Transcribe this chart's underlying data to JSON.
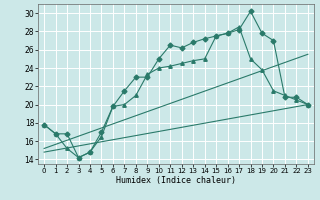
{
  "xlabel": "Humidex (Indice chaleur)",
  "xlim": [
    -0.5,
    23.5
  ],
  "ylim": [
    13.5,
    31.0
  ],
  "yticks": [
    14,
    16,
    18,
    20,
    22,
    24,
    26,
    28,
    30
  ],
  "xticks": [
    0,
    1,
    2,
    3,
    4,
    5,
    6,
    7,
    8,
    9,
    10,
    11,
    12,
    13,
    14,
    15,
    16,
    17,
    18,
    19,
    20,
    21,
    22,
    23
  ],
  "bg_color": "#cce8e8",
  "grid_color": "#b0d8d8",
  "line_color": "#2a7a6a",
  "series1_x": [
    0,
    1,
    2,
    3,
    4,
    5,
    6,
    7,
    8,
    9,
    10,
    11,
    12,
    13,
    14,
    15,
    16,
    17,
    18,
    19,
    20,
    21,
    22,
    23
  ],
  "series1_y": [
    17.8,
    16.8,
    16.8,
    14.2,
    14.8,
    17.0,
    19.8,
    21.5,
    23.0,
    23.0,
    25.0,
    26.5,
    26.2,
    26.8,
    27.2,
    27.5,
    27.8,
    28.2,
    30.2,
    27.8,
    27.0,
    20.8,
    20.8,
    20.0
  ],
  "series2_x": [
    0,
    1,
    2,
    3,
    4,
    5,
    6,
    7,
    8,
    9,
    10,
    11,
    12,
    13,
    14,
    15,
    16,
    17,
    18,
    19,
    20,
    21,
    22,
    23
  ],
  "series2_y": [
    17.8,
    16.8,
    15.2,
    14.2,
    14.8,
    16.5,
    19.8,
    20.0,
    21.0,
    23.3,
    24.0,
    24.2,
    24.5,
    24.8,
    25.0,
    27.5,
    27.8,
    28.5,
    25.0,
    23.8,
    21.5,
    21.0,
    20.5,
    20.0
  ],
  "line3_x": [
    0,
    23
  ],
  "line3_y": [
    15.2,
    25.5
  ],
  "line4_x": [
    0,
    23
  ],
  "line4_y": [
    14.8,
    20.0
  ]
}
